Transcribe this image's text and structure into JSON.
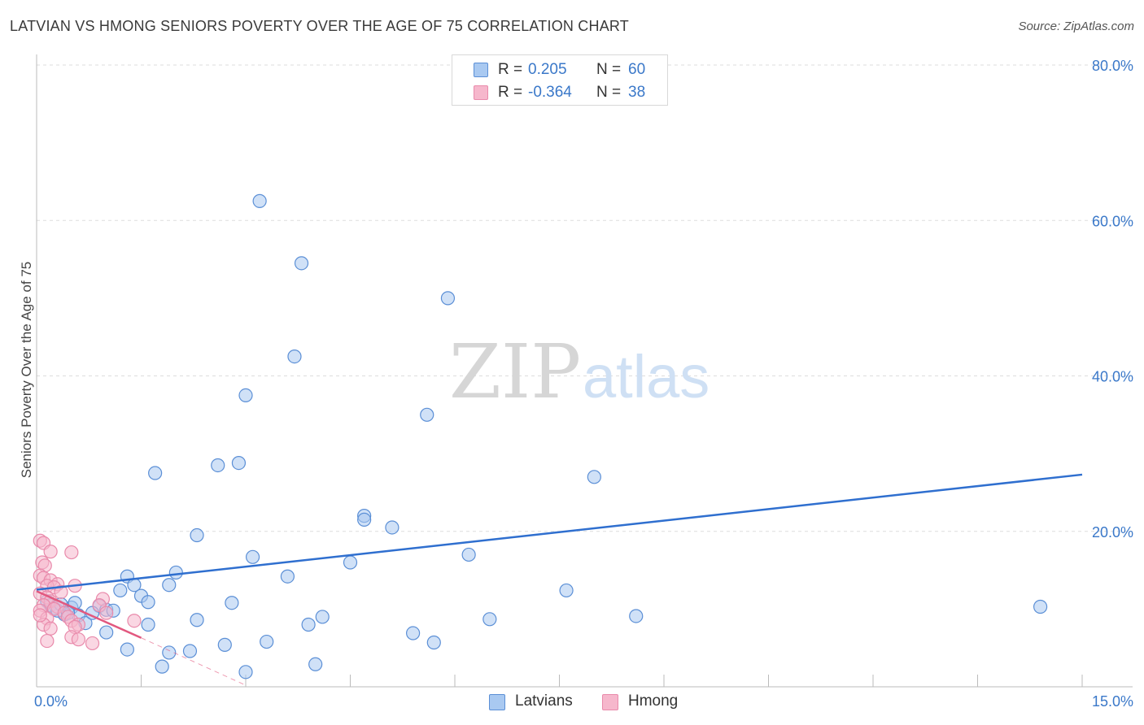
{
  "title": "LATVIAN VS HMONG SENIORS POVERTY OVER THE AGE OF 75 CORRELATION CHART",
  "source": "Source: ZipAtlas.com",
  "colors": {
    "latvians_fill": "#a9c9f1",
    "latvians_stroke": "#5b8fd6",
    "latvians_line": "#2f6fcf",
    "hmong_fill": "#f6b7cc",
    "hmong_stroke": "#e98aab",
    "hmong_line": "#e2587f",
    "axis_text": "#3a78c9",
    "grid": "#dddddd"
  },
  "legend": {
    "rows": [
      {
        "series": "Latvians",
        "r_label": "R =",
        "r_value": "0.205",
        "n_label": "N =",
        "n_value": "60"
      },
      {
        "series": "Hmong",
        "r_label": "R =",
        "r_value": "-0.364",
        "n_label": "N =",
        "n_value": "38"
      }
    ],
    "bottom": [
      "Latvians",
      "Hmong"
    ]
  },
  "chart_data": {
    "type": "scatter",
    "title": "LATVIAN VS HMONG SENIORS POVERTY OVER THE AGE OF 75 CORRELATION CHART",
    "xlabel": "",
    "ylabel": "Seniors Poverty Over the Age of 75",
    "xlim": [
      0,
      15
    ],
    "ylim": [
      0,
      80
    ],
    "x_tick_labels": [
      "0.0%",
      "15.0%"
    ],
    "y_tick_labels": [
      "20.0%",
      "40.0%",
      "60.0%",
      "80.0%"
    ],
    "y_ticks": [
      20,
      40,
      60,
      80
    ],
    "watermark": {
      "zip": "ZIP",
      "atlas": "atlas"
    },
    "series": [
      {
        "name": "Latvians",
        "r": 0.205,
        "n": 60,
        "trendline": {
          "x": [
            0.0,
            15.0
          ],
          "y": [
            12.5,
            27.3
          ]
        },
        "points": [
          [
            3.2,
            62.5
          ],
          [
            3.8,
            54.5
          ],
          [
            5.9,
            50.0
          ],
          [
            3.7,
            42.5
          ],
          [
            3.0,
            37.5
          ],
          [
            5.6,
            35.0
          ],
          [
            1.7,
            27.5
          ],
          [
            2.6,
            28.5
          ],
          [
            2.9,
            28.8
          ],
          [
            8.0,
            27.0
          ],
          [
            4.7,
            22.0
          ],
          [
            4.7,
            21.5
          ],
          [
            5.1,
            20.5
          ],
          [
            2.3,
            19.5
          ],
          [
            6.2,
            17.0
          ],
          [
            3.1,
            16.7
          ],
          [
            4.5,
            16.0
          ],
          [
            2.0,
            14.7
          ],
          [
            1.3,
            14.2
          ],
          [
            3.6,
            14.2
          ],
          [
            1.4,
            13.1
          ],
          [
            1.9,
            13.1
          ],
          [
            1.2,
            12.4
          ],
          [
            1.5,
            11.7
          ],
          [
            7.6,
            12.4
          ],
          [
            1.6,
            10.9
          ],
          [
            2.8,
            10.8
          ],
          [
            0.9,
            10.4
          ],
          [
            0.5,
            10.2
          ],
          [
            1.0,
            9.9
          ],
          [
            1.1,
            9.8
          ],
          [
            0.6,
            9.2
          ],
          [
            14.4,
            10.3
          ],
          [
            0.7,
            8.2
          ],
          [
            4.1,
            9.0
          ],
          [
            2.3,
            8.6
          ],
          [
            6.5,
            8.7
          ],
          [
            8.6,
            9.1
          ],
          [
            3.9,
            8.0
          ],
          [
            1.6,
            8.0
          ],
          [
            1.0,
            7.0
          ],
          [
            5.4,
            6.9
          ],
          [
            0.8,
            9.5
          ],
          [
            0.4,
            9.3
          ],
          [
            2.7,
            5.4
          ],
          [
            3.3,
            5.8
          ],
          [
            5.7,
            5.7
          ],
          [
            2.2,
            4.6
          ],
          [
            1.3,
            4.8
          ],
          [
            1.9,
            4.4
          ],
          [
            1.8,
            2.6
          ],
          [
            4.0,
            2.9
          ],
          [
            3.0,
            1.9
          ],
          [
            0.15,
            11.0
          ],
          [
            0.2,
            10.5
          ],
          [
            0.25,
            10.1
          ],
          [
            0.3,
            9.8
          ],
          [
            0.35,
            10.6
          ],
          [
            0.55,
            10.8
          ],
          [
            0.45,
            9.5
          ]
        ]
      },
      {
        "name": "Hmong",
        "r": -0.364,
        "n": 38,
        "trendline": {
          "x": [
            0.0,
            1.5
          ],
          "y": [
            12.3,
            6.3
          ]
        },
        "trendline_dashed": {
          "x": [
            1.5,
            3.0
          ],
          "y": [
            6.3,
            0.2
          ]
        },
        "points": [
          [
            0.05,
            18.8
          ],
          [
            0.1,
            18.5
          ],
          [
            0.08,
            16.0
          ],
          [
            0.12,
            15.6
          ],
          [
            0.05,
            14.3
          ],
          [
            0.1,
            14.0
          ],
          [
            0.2,
            13.7
          ],
          [
            0.3,
            13.2
          ],
          [
            0.15,
            13.0
          ],
          [
            0.25,
            12.8
          ],
          [
            0.35,
            12.2
          ],
          [
            0.05,
            12.0
          ],
          [
            0.15,
            11.5
          ],
          [
            0.2,
            11.0
          ],
          [
            0.1,
            10.5
          ],
          [
            0.3,
            10.3
          ],
          [
            0.25,
            10.0
          ],
          [
            0.05,
            9.8
          ],
          [
            0.4,
            9.5
          ],
          [
            0.45,
            9.0
          ],
          [
            0.15,
            8.8
          ],
          [
            0.5,
            8.5
          ],
          [
            0.1,
            8.0
          ],
          [
            0.6,
            8.0
          ],
          [
            0.55,
            7.7
          ],
          [
            0.2,
            7.5
          ],
          [
            0.5,
            17.3
          ],
          [
            0.2,
            17.4
          ],
          [
            0.95,
            11.3
          ],
          [
            0.9,
            10.5
          ],
          [
            0.55,
            13.0
          ],
          [
            1.0,
            9.5
          ],
          [
            1.4,
            8.5
          ],
          [
            0.5,
            6.4
          ],
          [
            0.6,
            6.1
          ],
          [
            0.8,
            5.6
          ],
          [
            0.15,
            5.9
          ],
          [
            0.05,
            9.2
          ]
        ]
      }
    ]
  }
}
